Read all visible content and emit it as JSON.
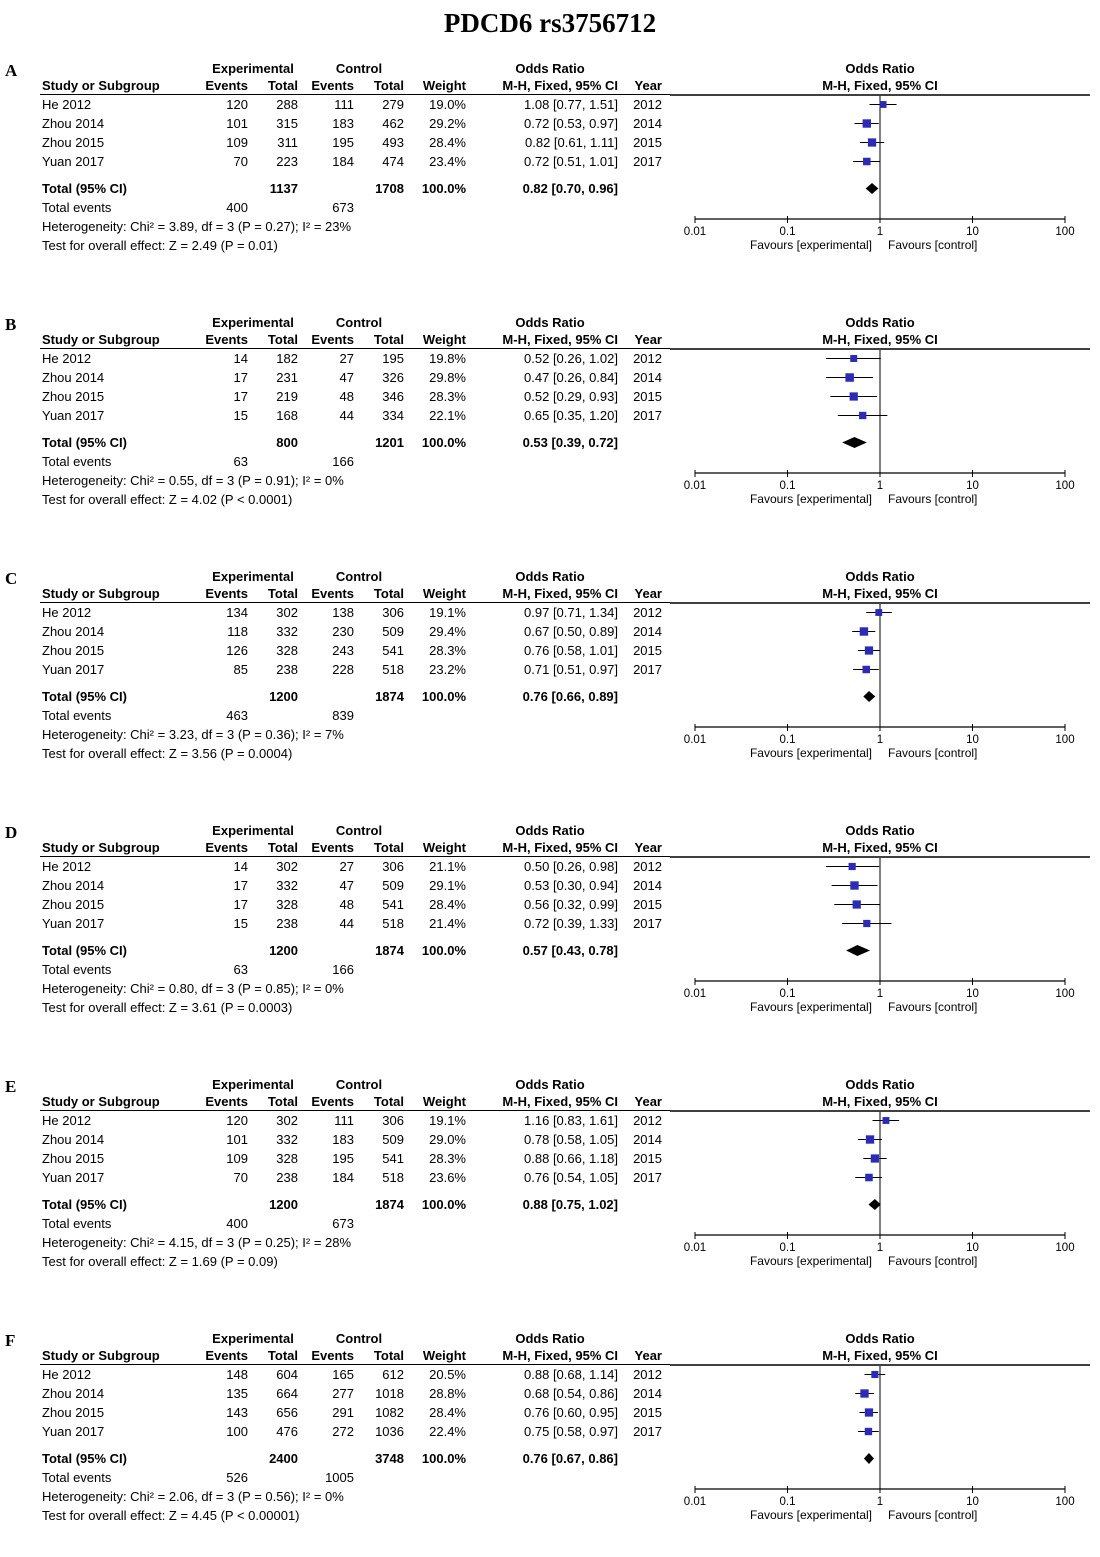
{
  "title": "PDCD6 rs3756712",
  "colors": {
    "marker_blue": "#2b2bb8",
    "diamond_black": "#000000",
    "line_black": "#000000"
  },
  "table_headers": {
    "group_experimental": "Experimental",
    "group_control": "Control",
    "group_odds_ratio": "Odds Ratio",
    "study_or_subgroup": "Study or Subgroup",
    "events": "Events",
    "total": "Total",
    "weight": "Weight",
    "mh_fixed_ci": "M-H, Fixed, 95% CI",
    "year": "Year"
  },
  "plot_headers": {
    "line1": "Odds Ratio",
    "line2": "M-H, Fixed, 95% CI"
  },
  "row_labels": {
    "total_ci": "Total (95% CI)",
    "total_events": "Total events"
  },
  "axis": {
    "scale": "log10",
    "ticks": [
      0.01,
      0.1,
      1,
      10,
      100
    ],
    "tick_labels": [
      "0.01",
      "0.1",
      "1",
      "10",
      "100"
    ],
    "favours_left": "Favours [experimental]",
    "favours_right": "Favours [control]"
  },
  "chart_data": [
    {
      "panel": "A",
      "type": "forest",
      "studies": [
        {
          "study": "He 2012",
          "exp_events": "120",
          "exp_total": "288",
          "ctl_events": "111",
          "ctl_total": "279",
          "weight": "19.0%",
          "or": 1.08,
          "ci_low": 0.77,
          "ci_high": 1.51,
          "or_ci_text": "1.08 [0.77, 1.51]",
          "year": "2012"
        },
        {
          "study": "Zhou 2014",
          "exp_events": "101",
          "exp_total": "315",
          "ctl_events": "183",
          "ctl_total": "462",
          "weight": "29.2%",
          "or": 0.72,
          "ci_low": 0.53,
          "ci_high": 0.97,
          "or_ci_text": "0.72 [0.53, 0.97]",
          "year": "2014"
        },
        {
          "study": "Zhou 2015",
          "exp_events": "109",
          "exp_total": "311",
          "ctl_events": "195",
          "ctl_total": "493",
          "weight": "28.4%",
          "or": 0.82,
          "ci_low": 0.61,
          "ci_high": 1.11,
          "or_ci_text": "0.82 [0.61, 1.11]",
          "year": "2015"
        },
        {
          "study": "Yuan 2017",
          "exp_events": "70",
          "exp_total": "223",
          "ctl_events": "184",
          "ctl_total": "474",
          "weight": "23.4%",
          "or": 0.72,
          "ci_low": 0.51,
          "ci_high": 1.01,
          "or_ci_text": "0.72 [0.51, 1.01]",
          "year": "2017"
        }
      ],
      "total": {
        "exp_total": "1137",
        "ctl_total": "1708",
        "weight": "100.0%",
        "or": 0.82,
        "ci_low": 0.7,
        "ci_high": 0.96,
        "or_ci_text": "0.82 [0.70, 0.96]"
      },
      "total_events": {
        "experimental": "400",
        "control": "673"
      },
      "heterogeneity": "Heterogeneity: Chi² = 3.89, df = 3 (P = 0.27); I² = 23%",
      "overall_effect": "Test for overall effect: Z = 2.49 (P = 0.01)"
    },
    {
      "panel": "B",
      "type": "forest",
      "studies": [
        {
          "study": "He 2012",
          "exp_events": "14",
          "exp_total": "182",
          "ctl_events": "27",
          "ctl_total": "195",
          "weight": "19.8%",
          "or": 0.52,
          "ci_low": 0.26,
          "ci_high": 1.02,
          "or_ci_text": "0.52 [0.26, 1.02]",
          "year": "2012"
        },
        {
          "study": "Zhou 2014",
          "exp_events": "17",
          "exp_total": "231",
          "ctl_events": "47",
          "ctl_total": "326",
          "weight": "29.8%",
          "or": 0.47,
          "ci_low": 0.26,
          "ci_high": 0.84,
          "or_ci_text": "0.47 [0.26, 0.84]",
          "year": "2014"
        },
        {
          "study": "Zhou 2015",
          "exp_events": "17",
          "exp_total": "219",
          "ctl_events": "48",
          "ctl_total": "346",
          "weight": "28.3%",
          "or": 0.52,
          "ci_low": 0.29,
          "ci_high": 0.93,
          "or_ci_text": "0.52 [0.29, 0.93]",
          "year": "2015"
        },
        {
          "study": "Yuan 2017",
          "exp_events": "15",
          "exp_total": "168",
          "ctl_events": "44",
          "ctl_total": "334",
          "weight": "22.1%",
          "or": 0.65,
          "ci_low": 0.35,
          "ci_high": 1.2,
          "or_ci_text": "0.65 [0.35, 1.20]",
          "year": "2017"
        }
      ],
      "total": {
        "exp_total": "800",
        "ctl_total": "1201",
        "weight": "100.0%",
        "or": 0.53,
        "ci_low": 0.39,
        "ci_high": 0.72,
        "or_ci_text": "0.53 [0.39, 0.72]"
      },
      "total_events": {
        "experimental": "63",
        "control": "166"
      },
      "heterogeneity": "Heterogeneity: Chi² = 0.55, df = 3 (P = 0.91); I² = 0%",
      "overall_effect": "Test for overall effect: Z = 4.02 (P < 0.0001)"
    },
    {
      "panel": "C",
      "type": "forest",
      "studies": [
        {
          "study": "He 2012",
          "exp_events": "134",
          "exp_total": "302",
          "ctl_events": "138",
          "ctl_total": "306",
          "weight": "19.1%",
          "or": 0.97,
          "ci_low": 0.71,
          "ci_high": 1.34,
          "or_ci_text": "0.97 [0.71, 1.34]",
          "year": "2012"
        },
        {
          "study": "Zhou 2014",
          "exp_events": "118",
          "exp_total": "332",
          "ctl_events": "230",
          "ctl_total": "509",
          "weight": "29.4%",
          "or": 0.67,
          "ci_low": 0.5,
          "ci_high": 0.89,
          "or_ci_text": "0.67 [0.50, 0.89]",
          "year": "2014"
        },
        {
          "study": "Zhou 2015",
          "exp_events": "126",
          "exp_total": "328",
          "ctl_events": "243",
          "ctl_total": "541",
          "weight": "28.3%",
          "or": 0.76,
          "ci_low": 0.58,
          "ci_high": 1.01,
          "or_ci_text": "0.76 [0.58, 1.01]",
          "year": "2015"
        },
        {
          "study": "Yuan 2017",
          "exp_events": "85",
          "exp_total": "238",
          "ctl_events": "228",
          "ctl_total": "518",
          "weight": "23.2%",
          "or": 0.71,
          "ci_low": 0.51,
          "ci_high": 0.97,
          "or_ci_text": "0.71 [0.51, 0.97]",
          "year": "2017"
        }
      ],
      "total": {
        "exp_total": "1200",
        "ctl_total": "1874",
        "weight": "100.0%",
        "or": 0.76,
        "ci_low": 0.66,
        "ci_high": 0.89,
        "or_ci_text": "0.76 [0.66, 0.89]"
      },
      "total_events": {
        "experimental": "463",
        "control": "839"
      },
      "heterogeneity": "Heterogeneity: Chi² = 3.23, df = 3 (P = 0.36); I² = 7%",
      "overall_effect": "Test for overall effect: Z = 3.56 (P = 0.0004)"
    },
    {
      "panel": "D",
      "type": "forest",
      "studies": [
        {
          "study": "He 2012",
          "exp_events": "14",
          "exp_total": "302",
          "ctl_events": "27",
          "ctl_total": "306",
          "weight": "21.1%",
          "or": 0.5,
          "ci_low": 0.26,
          "ci_high": 0.98,
          "or_ci_text": "0.50 [0.26, 0.98]",
          "year": "2012"
        },
        {
          "study": "Zhou 2014",
          "exp_events": "17",
          "exp_total": "332",
          "ctl_events": "47",
          "ctl_total": "509",
          "weight": "29.1%",
          "or": 0.53,
          "ci_low": 0.3,
          "ci_high": 0.94,
          "or_ci_text": "0.53 [0.30, 0.94]",
          "year": "2014"
        },
        {
          "study": "Zhou 2015",
          "exp_events": "17",
          "exp_total": "328",
          "ctl_events": "48",
          "ctl_total": "541",
          "weight": "28.4%",
          "or": 0.56,
          "ci_low": 0.32,
          "ci_high": 0.99,
          "or_ci_text": "0.56 [0.32, 0.99]",
          "year": "2015"
        },
        {
          "study": "Yuan 2017",
          "exp_events": "15",
          "exp_total": "238",
          "ctl_events": "44",
          "ctl_total": "518",
          "weight": "21.4%",
          "or": 0.72,
          "ci_low": 0.39,
          "ci_high": 1.33,
          "or_ci_text": "0.72 [0.39, 1.33]",
          "year": "2017"
        }
      ],
      "total": {
        "exp_total": "1200",
        "ctl_total": "1874",
        "weight": "100.0%",
        "or": 0.57,
        "ci_low": 0.43,
        "ci_high": 0.78,
        "or_ci_text": "0.57 [0.43, 0.78]"
      },
      "total_events": {
        "experimental": "63",
        "control": "166"
      },
      "heterogeneity": "Heterogeneity: Chi² = 0.80, df = 3 (P = 0.85); I² = 0%",
      "overall_effect": "Test for overall effect: Z = 3.61 (P = 0.0003)"
    },
    {
      "panel": "E",
      "type": "forest",
      "studies": [
        {
          "study": "He 2012",
          "exp_events": "120",
          "exp_total": "302",
          "ctl_events": "111",
          "ctl_total": "306",
          "weight": "19.1%",
          "or": 1.16,
          "ci_low": 0.83,
          "ci_high": 1.61,
          "or_ci_text": "1.16 [0.83, 1.61]",
          "year": "2012"
        },
        {
          "study": "Zhou 2014",
          "exp_events": "101",
          "exp_total": "332",
          "ctl_events": "183",
          "ctl_total": "509",
          "weight": "29.0%",
          "or": 0.78,
          "ci_low": 0.58,
          "ci_high": 1.05,
          "or_ci_text": "0.78 [0.58, 1.05]",
          "year": "2014"
        },
        {
          "study": "Zhou 2015",
          "exp_events": "109",
          "exp_total": "328",
          "ctl_events": "195",
          "ctl_total": "541",
          "weight": "28.3%",
          "or": 0.88,
          "ci_low": 0.66,
          "ci_high": 1.18,
          "or_ci_text": "0.88 [0.66, 1.18]",
          "year": "2015"
        },
        {
          "study": "Yuan 2017",
          "exp_events": "70",
          "exp_total": "238",
          "ctl_events": "184",
          "ctl_total": "518",
          "weight": "23.6%",
          "or": 0.76,
          "ci_low": 0.54,
          "ci_high": 1.05,
          "or_ci_text": "0.76 [0.54, 1.05]",
          "year": "2017"
        }
      ],
      "total": {
        "exp_total": "1200",
        "ctl_total": "1874",
        "weight": "100.0%",
        "or": 0.88,
        "ci_low": 0.75,
        "ci_high": 1.02,
        "or_ci_text": "0.88 [0.75, 1.02]"
      },
      "total_events": {
        "experimental": "400",
        "control": "673"
      },
      "heterogeneity": "Heterogeneity: Chi² = 4.15, df = 3 (P = 0.25); I² = 28%",
      "overall_effect": "Test for overall effect: Z = 1.69 (P = 0.09)"
    },
    {
      "panel": "F",
      "type": "forest",
      "studies": [
        {
          "study": "He 2012",
          "exp_events": "148",
          "exp_total": "604",
          "ctl_events": "165",
          "ctl_total": "612",
          "weight": "20.5%",
          "or": 0.88,
          "ci_low": 0.68,
          "ci_high": 1.14,
          "or_ci_text": "0.88 [0.68, 1.14]",
          "year": "2012"
        },
        {
          "study": "Zhou 2014",
          "exp_events": "135",
          "exp_total": "664",
          "ctl_events": "277",
          "ctl_total": "1018",
          "weight": "28.8%",
          "or": 0.68,
          "ci_low": 0.54,
          "ci_high": 0.86,
          "or_ci_text": "0.68 [0.54, 0.86]",
          "year": "2014"
        },
        {
          "study": "Zhou 2015",
          "exp_events": "143",
          "exp_total": "656",
          "ctl_events": "291",
          "ctl_total": "1082",
          "weight": "28.4%",
          "or": 0.76,
          "ci_low": 0.6,
          "ci_high": 0.95,
          "or_ci_text": "0.76 [0.60, 0.95]",
          "year": "2015"
        },
        {
          "study": "Yuan 2017",
          "exp_events": "100",
          "exp_total": "476",
          "ctl_events": "272",
          "ctl_total": "1036",
          "weight": "22.4%",
          "or": 0.75,
          "ci_low": 0.58,
          "ci_high": 0.97,
          "or_ci_text": "0.75 [0.58, 0.97]",
          "year": "2017"
        }
      ],
      "total": {
        "exp_total": "2400",
        "ctl_total": "3748",
        "weight": "100.0%",
        "or": 0.76,
        "ci_low": 0.67,
        "ci_high": 0.86,
        "or_ci_text": "0.76 [0.67, 0.86]"
      },
      "total_events": {
        "experimental": "526",
        "control": "1005"
      },
      "heterogeneity": "Heterogeneity: Chi² = 2.06, df = 3 (P = 0.56); I² = 0%",
      "overall_effect": "Test for overall effect: Z = 4.45 (P < 0.00001)"
    }
  ]
}
